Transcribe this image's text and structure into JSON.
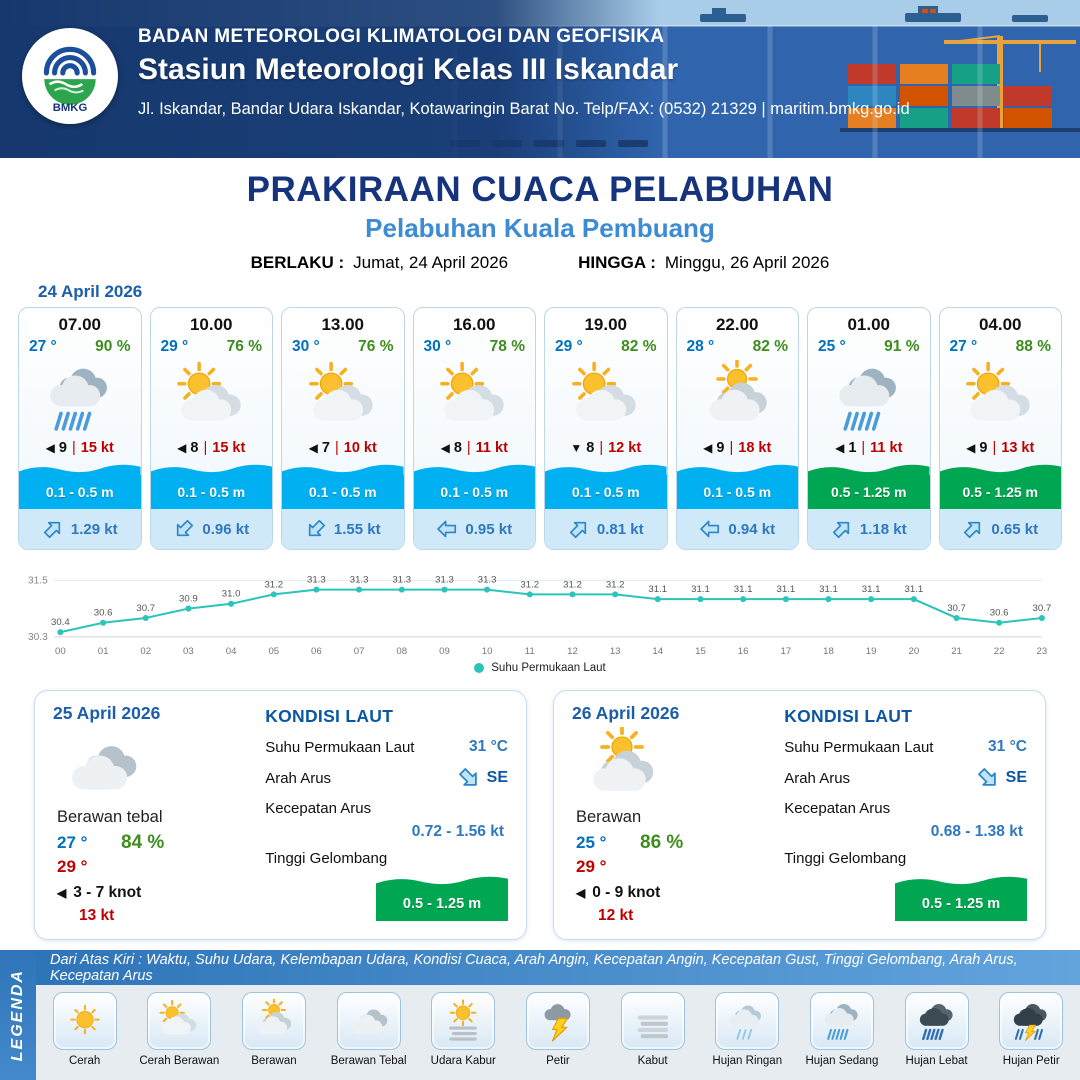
{
  "header": {
    "logo_text": "BMKG",
    "agency": "BADAN METEOROLOGI KLIMATOLOGI DAN GEOFISIKA",
    "station": "Stasiun Meteorologi Kelas III Iskandar",
    "address": "Jl. Iskandar, Bandar Udara Iskandar, Kotawaringin Barat No. Telp/FAX: (0532) 21329 | maritim.bmkg.go.id"
  },
  "title": {
    "main": "PRAKIRAAN CUACA PELABUHAN",
    "subtitle": "Pelabuhan Kuala Pembuang",
    "valid_from_label": "BERLAKU :",
    "valid_from": "Jumat, 24 April 2026",
    "valid_to_label": "HINGGA :",
    "valid_to": "Minggu, 26 April 2026"
  },
  "forecast_date": "24 April 2026",
  "colors": {
    "wave_low": "#00b0f0",
    "wave_mid": "#00a651",
    "temp_blue": "#0070c0",
    "humidity_green": "#3f8d1f",
    "gust_red": "#c00000",
    "current_blue": "#2e78c0",
    "chart_line": "#2bc4b8"
  },
  "forecast_cards": [
    {
      "time": "07.00",
      "temp": "27 °",
      "humidity": "90 %",
      "icon": "hujan-sedang",
      "wind_arrow": "◀",
      "wind": "9",
      "gust": "15 kt",
      "wave": "0.1 - 0.5 m",
      "wave_color": "#00b0f0",
      "current_dir": "NE",
      "current": "1.29 kt"
    },
    {
      "time": "10.00",
      "temp": "29 °",
      "humidity": "76 %",
      "icon": "cerah-berawan",
      "wind_arrow": "◀",
      "wind": "8",
      "gust": "15 kt",
      "wave": "0.1 - 0.5 m",
      "wave_color": "#00b0f0",
      "current_dir": "SW",
      "current": "0.96 kt"
    },
    {
      "time": "13.00",
      "temp": "30 °",
      "humidity": "76 %",
      "icon": "cerah-berawan",
      "wind_arrow": "◀",
      "wind": "7",
      "gust": "10 kt",
      "wave": "0.1 - 0.5 m",
      "wave_color": "#00b0f0",
      "current_dir": "SW",
      "current": "1.55 kt"
    },
    {
      "time": "16.00",
      "temp": "30 °",
      "humidity": "78 %",
      "icon": "cerah-berawan",
      "wind_arrow": "◀",
      "wind": "8",
      "gust": "11 kt",
      "wave": "0.1 - 0.5 m",
      "wave_color": "#00b0f0",
      "current_dir": "W",
      "current": "0.95 kt"
    },
    {
      "time": "19.00",
      "temp": "29 °",
      "humidity": "82 %",
      "icon": "cerah-berawan",
      "wind_arrow": "▼",
      "wind": "8",
      "gust": "12 kt",
      "wave": "0.1 - 0.5 m",
      "wave_color": "#00b0f0",
      "current_dir": "NE",
      "current": "0.81 kt"
    },
    {
      "time": "22.00",
      "temp": "28 °",
      "humidity": "82 %",
      "icon": "berawan",
      "wind_arrow": "◀",
      "wind": "9",
      "gust": "18 kt",
      "wave": "0.1 - 0.5 m",
      "wave_color": "#00b0f0",
      "current_dir": "W",
      "current": "0.94 kt"
    },
    {
      "time": "01.00",
      "temp": "25 °",
      "humidity": "91 %",
      "icon": "hujan-sedang",
      "wind_arrow": "◀",
      "wind": "1",
      "gust": "11 kt",
      "wave": "0.5 - 1.25 m",
      "wave_color": "#00a651",
      "current_dir": "NE",
      "current": "1.18 kt"
    },
    {
      "time": "04.00",
      "temp": "27 °",
      "humidity": "88 %",
      "icon": "cerah-berawan",
      "wind_arrow": "◀",
      "wind": "9",
      "gust": "13 kt",
      "wave": "0.5 - 1.25 m",
      "wave_color": "#00a651",
      "current_dir": "NE",
      "current": "0.65 kt"
    }
  ],
  "chart_data": {
    "type": "line",
    "series_label": "Suhu Permukaan Laut",
    "x": [
      "00",
      "01",
      "02",
      "03",
      "04",
      "05",
      "06",
      "07",
      "08",
      "09",
      "10",
      "11",
      "12",
      "13",
      "14",
      "15",
      "16",
      "17",
      "18",
      "19",
      "20",
      "21",
      "22",
      "23"
    ],
    "values": [
      30.4,
      30.6,
      30.7,
      30.9,
      31.0,
      31.2,
      31.3,
      31.3,
      31.3,
      31.3,
      31.3,
      31.2,
      31.2,
      31.2,
      31.1,
      31.1,
      31.1,
      31.1,
      31.1,
      31.1,
      31.1,
      30.7,
      30.6,
      30.7
    ],
    "ylim": [
      30.3,
      31.5
    ],
    "grid": false,
    "legend_position": "bottom",
    "line_color": "#2bc4b8"
  },
  "daily_cards": [
    {
      "date": "25 April 2026",
      "icon": "berawan-tebal",
      "condition": "Berawan tebal",
      "temp_min": "27 °",
      "temp_max": "29 °",
      "humidity": "84 %",
      "wind_arrow": "◀",
      "wind": "3  - 7 knot",
      "gust": "13 kt",
      "sea": {
        "heading": "KONDISI LAUT",
        "sst_label": "Suhu Permukaan Laut",
        "sst": "31 °C",
        "current_dir_label": "Arah Arus",
        "current_dir": "SE",
        "current_speed_label": "Kecepatan Arus",
        "current_speed": "0.72  - 1.56 kt",
        "wave_label": "Tinggi Gelombang",
        "wave": "0.5 - 1.25 m"
      }
    },
    {
      "date": "26 April 2026",
      "icon": "berawan",
      "condition": "Berawan",
      "temp_min": "25 °",
      "temp_max": "29 °",
      "humidity": "86 %",
      "wind_arrow": "◀",
      "wind": "0  - 9 knot",
      "gust": "12 kt",
      "sea": {
        "heading": "KONDISI LAUT",
        "sst_label": "Suhu Permukaan Laut",
        "sst": "31 °C",
        "current_dir_label": "Arah Arus",
        "current_dir": "SE",
        "current_speed_label": "Kecepatan Arus",
        "current_speed": "0.68  - 1.38 kt",
        "wave_label": "Tinggi Gelombang",
        "wave": "0.5 - 1.25 m"
      }
    }
  ],
  "legend": {
    "title": "LEGENDA",
    "banner": "Dari Atas Kiri : Waktu, Suhu Udara, Kelembapan Udara, Kondisi Cuaca, Arah Angin, Kecepatan Angin, Kecepatan Gust, Tinggi Gelombang, Arah Arus, Kecepatan Arus",
    "items": [
      {
        "label": "Cerah",
        "icon": "cerah"
      },
      {
        "label": "Cerah Berawan",
        "icon": "cerah-berawan"
      },
      {
        "label": "Berawan",
        "icon": "berawan"
      },
      {
        "label": "Berawan Tebal",
        "icon": "berawan-tebal"
      },
      {
        "label": "Udara Kabur",
        "icon": "udara-kabur"
      },
      {
        "label": "Petir",
        "icon": "petir"
      },
      {
        "label": "Kabut",
        "icon": "kabut"
      },
      {
        "label": "Hujan Ringan",
        "icon": "hujan-ringan"
      },
      {
        "label": "Hujan Sedang",
        "icon": "hujan-sedang"
      },
      {
        "label": "Hujan Lebat",
        "icon": "hujan-lebat"
      },
      {
        "label": "Hujan Petir",
        "icon": "hujan-petir"
      }
    ]
  }
}
